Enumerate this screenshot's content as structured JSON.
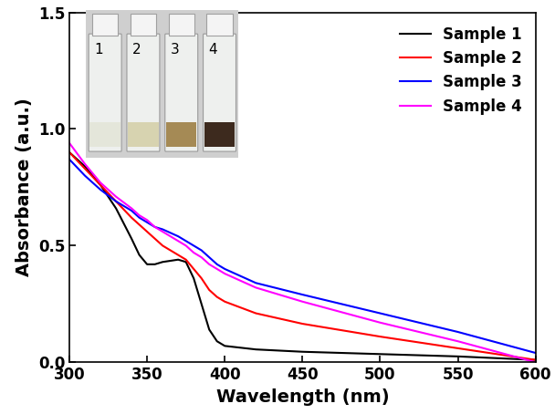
{
  "chart_data": {
    "type": "line",
    "x_label": "Wavelength (nm)",
    "y_label": "Absorbance (a.u.)",
    "x": [
      300,
      310,
      320,
      330,
      340,
      345,
      350,
      355,
      360,
      370,
      375,
      380,
      385,
      390,
      395,
      400,
      420,
      450,
      500,
      550,
      600
    ],
    "series": [
      {
        "name": "Sample 1",
        "color": "#000000",
        "values": [
          0.9,
          0.84,
          0.76,
          0.66,
          0.53,
          0.46,
          0.42,
          0.42,
          0.43,
          0.44,
          0.43,
          0.36,
          0.25,
          0.14,
          0.09,
          0.07,
          0.055,
          0.045,
          0.035,
          0.025,
          0.01
        ]
      },
      {
        "name": "Sample 2",
        "color": "#ff0000",
        "values": [
          0.9,
          0.83,
          0.76,
          0.69,
          0.62,
          0.59,
          0.56,
          0.53,
          0.5,
          0.46,
          0.44,
          0.4,
          0.36,
          0.31,
          0.28,
          0.26,
          0.21,
          0.165,
          0.11,
          0.06,
          0.01
        ]
      },
      {
        "name": "Sample 3",
        "color": "#0000ff",
        "values": [
          0.87,
          0.8,
          0.74,
          0.69,
          0.65,
          0.62,
          0.6,
          0.58,
          0.57,
          0.54,
          0.52,
          0.5,
          0.48,
          0.45,
          0.42,
          0.4,
          0.34,
          0.29,
          0.21,
          0.13,
          0.04
        ]
      },
      {
        "name": "Sample 4",
        "color": "#ff00ff",
        "values": [
          0.94,
          0.85,
          0.77,
          0.71,
          0.66,
          0.63,
          0.61,
          0.58,
          0.56,
          0.52,
          0.5,
          0.47,
          0.45,
          0.42,
          0.4,
          0.38,
          0.32,
          0.26,
          0.17,
          0.09,
          0.0
        ]
      }
    ],
    "xlim": [
      300,
      600
    ],
    "xticks": [
      300,
      350,
      400,
      450,
      500,
      550,
      600
    ],
    "ylim": [
      0,
      1.5
    ],
    "yticks": [
      {
        "value": 0,
        "label": "0.0"
      },
      {
        "value": 0.5,
        "label": "0.5"
      },
      {
        "value": 1.0,
        "label": "1.0"
      },
      {
        "value": 1.5,
        "label": "1.5"
      }
    ],
    "grid": false,
    "legend": "upper right",
    "annotations": [
      "1",
      "2",
      "3",
      "4"
    ]
  }
}
